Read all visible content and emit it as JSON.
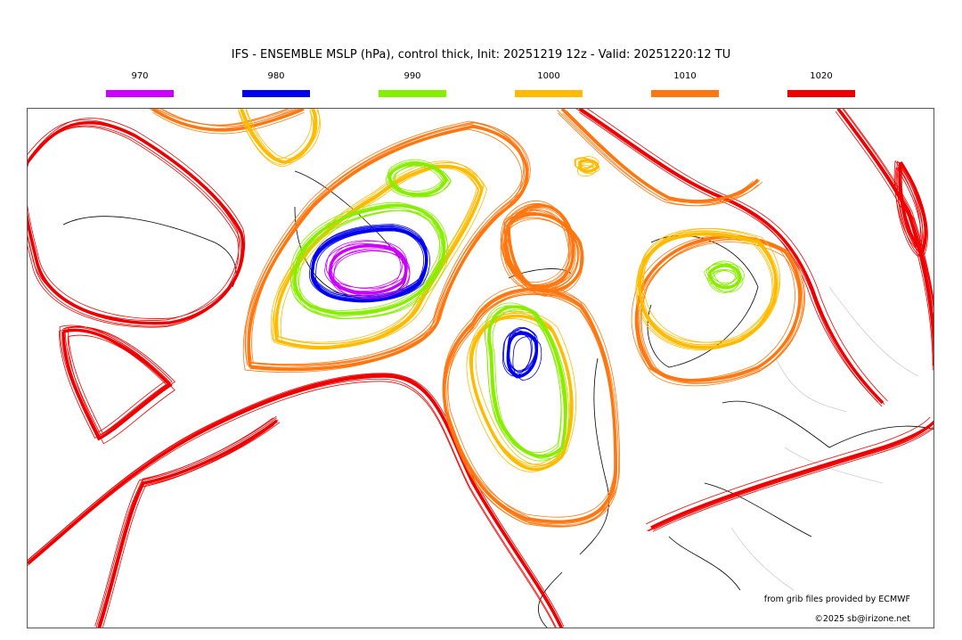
{
  "title": "IFS - ENSEMBLE MSLP (hPa), control thick, Init: 20251219 12z - Valid: 20251220:12 TU",
  "legend": [
    {
      "label": "970",
      "color": "#cc00ff"
    },
    {
      "label": "980",
      "color": "#0000ee"
    },
    {
      "label": "990",
      "color": "#88ee00"
    },
    {
      "label": "1000",
      "color": "#ffbb00"
    },
    {
      "label": "1010",
      "color": "#ff7711"
    },
    {
      "label": "1020",
      "color": "#ee0000"
    }
  ],
  "credits": {
    "source": "from grib files provided by ECMWF",
    "copyright": "©2025 sb@irizone.net"
  }
}
